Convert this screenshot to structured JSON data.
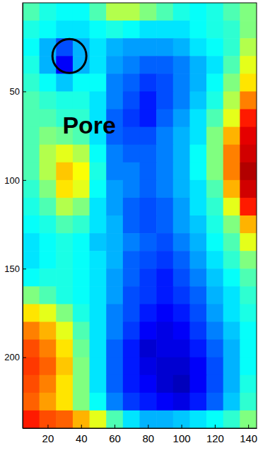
{
  "chart_data": {
    "type": "heatmap",
    "x": [
      10,
      20,
      30,
      40,
      50,
      60,
      70,
      80,
      90,
      100,
      110,
      120,
      130,
      140
    ],
    "y": [
      5,
      15,
      25,
      35,
      45,
      55,
      65,
      75,
      85,
      95,
      105,
      115,
      125,
      135,
      145,
      155,
      165,
      175,
      185,
      195,
      205,
      215,
      225,
      235
    ],
    "xlim": [
      5,
      145
    ],
    "ylim": [
      0,
      240
    ],
    "xticks": [
      20,
      40,
      60,
      80,
      100,
      120,
      140
    ],
    "yticks": [
      50,
      100,
      150,
      200
    ],
    "zlim": [
      0,
      1
    ],
    "cells": [
      [
        0.45,
        0.4,
        0.38,
        0.38,
        0.45,
        0.55,
        0.55,
        0.5,
        0.45,
        0.4,
        0.38,
        0.4,
        0.45,
        0.5
      ],
      [
        0.4,
        0.38,
        0.35,
        0.35,
        0.38,
        0.4,
        0.38,
        0.35,
        0.35,
        0.35,
        0.38,
        0.4,
        0.42,
        0.5
      ],
      [
        0.38,
        0.3,
        0.2,
        0.3,
        0.35,
        0.3,
        0.28,
        0.28,
        0.28,
        0.3,
        0.35,
        0.38,
        0.42,
        0.55
      ],
      [
        0.4,
        0.3,
        0.12,
        0.3,
        0.35,
        0.28,
        0.25,
        0.22,
        0.22,
        0.25,
        0.3,
        0.35,
        0.45,
        0.6
      ],
      [
        0.42,
        0.38,
        0.32,
        0.38,
        0.38,
        0.25,
        0.22,
        0.18,
        0.2,
        0.25,
        0.3,
        0.38,
        0.5,
        0.65
      ],
      [
        0.45,
        0.42,
        0.4,
        0.4,
        0.35,
        0.25,
        0.2,
        0.15,
        0.2,
        0.25,
        0.32,
        0.4,
        0.55,
        0.75
      ],
      [
        0.45,
        0.45,
        0.42,
        0.42,
        0.35,
        0.22,
        0.18,
        0.15,
        0.22,
        0.28,
        0.35,
        0.45,
        0.6,
        0.85
      ],
      [
        0.45,
        0.5,
        0.48,
        0.45,
        0.35,
        0.22,
        0.2,
        0.2,
        0.25,
        0.3,
        0.35,
        0.5,
        0.7,
        0.9
      ],
      [
        0.45,
        0.55,
        0.6,
        0.55,
        0.38,
        0.25,
        0.22,
        0.22,
        0.25,
        0.3,
        0.38,
        0.5,
        0.75,
        0.92
      ],
      [
        0.45,
        0.55,
        0.68,
        0.62,
        0.4,
        0.25,
        0.25,
        0.22,
        0.25,
        0.3,
        0.38,
        0.5,
        0.75,
        0.95
      ],
      [
        0.42,
        0.5,
        0.65,
        0.6,
        0.38,
        0.28,
        0.25,
        0.22,
        0.25,
        0.3,
        0.35,
        0.45,
        0.7,
        0.92
      ],
      [
        0.4,
        0.45,
        0.55,
        0.5,
        0.35,
        0.28,
        0.22,
        0.2,
        0.22,
        0.28,
        0.35,
        0.42,
        0.6,
        0.85
      ],
      [
        0.38,
        0.4,
        0.45,
        0.42,
        0.35,
        0.3,
        0.22,
        0.2,
        0.22,
        0.28,
        0.32,
        0.4,
        0.5,
        0.7
      ],
      [
        0.35,
        0.38,
        0.4,
        0.38,
        0.32,
        0.3,
        0.25,
        0.22,
        0.2,
        0.25,
        0.3,
        0.38,
        0.45,
        0.6
      ],
      [
        0.35,
        0.38,
        0.4,
        0.38,
        0.35,
        0.3,
        0.22,
        0.2,
        0.18,
        0.22,
        0.28,
        0.35,
        0.42,
        0.5
      ],
      [
        0.38,
        0.4,
        0.4,
        0.38,
        0.35,
        0.28,
        0.22,
        0.18,
        0.15,
        0.2,
        0.25,
        0.32,
        0.38,
        0.45
      ],
      [
        0.5,
        0.45,
        0.4,
        0.38,
        0.35,
        0.28,
        0.2,
        0.18,
        0.15,
        0.18,
        0.22,
        0.3,
        0.35,
        0.42
      ],
      [
        0.65,
        0.6,
        0.5,
        0.4,
        0.35,
        0.25,
        0.2,
        0.15,
        0.12,
        0.15,
        0.2,
        0.28,
        0.35,
        0.4
      ],
      [
        0.75,
        0.7,
        0.6,
        0.45,
        0.35,
        0.25,
        0.18,
        0.12,
        0.1,
        0.12,
        0.18,
        0.25,
        0.32,
        0.38
      ],
      [
        0.8,
        0.75,
        0.65,
        0.48,
        0.35,
        0.22,
        0.15,
        0.08,
        0.1,
        0.1,
        0.15,
        0.22,
        0.3,
        0.38
      ],
      [
        0.82,
        0.78,
        0.68,
        0.5,
        0.35,
        0.22,
        0.15,
        0.1,
        0.08,
        0.08,
        0.12,
        0.2,
        0.3,
        0.38
      ],
      [
        0.8,
        0.75,
        0.65,
        0.5,
        0.35,
        0.22,
        0.15,
        0.12,
        0.08,
        0.06,
        0.12,
        0.2,
        0.3,
        0.4
      ],
      [
        0.78,
        0.72,
        0.65,
        0.5,
        0.38,
        0.25,
        0.18,
        0.15,
        0.12,
        0.1,
        0.15,
        0.22,
        0.32,
        0.42
      ],
      [
        0.85,
        0.8,
        0.78,
        0.7,
        0.6,
        0.45,
        0.35,
        0.3,
        0.3,
        0.32,
        0.35,
        0.38,
        0.42,
        0.5
      ]
    ],
    "annotations": [
      {
        "text": "Pore",
        "x": 33,
        "y": 30
      }
    ]
  }
}
